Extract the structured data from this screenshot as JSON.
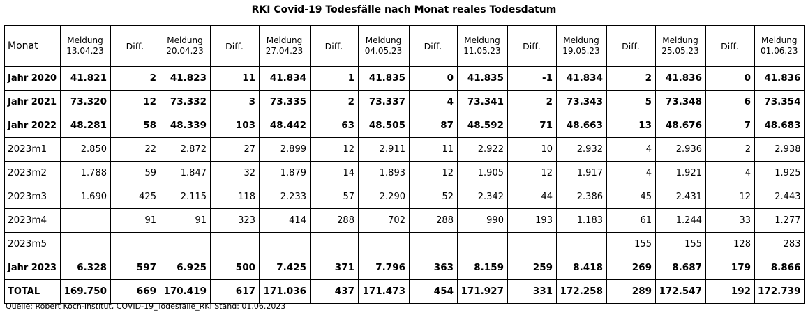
{
  "title": "RKI Covid-19 Todesfälle nach Monat reales Todesdatum",
  "header": {
    "monat": "Monat",
    "diff": "Diff.",
    "meldung_label": "Meldung",
    "dates": [
      "13.04.23",
      "20.04.23",
      "27.04.23",
      "04.05.23",
      "11.05.23",
      "19.05.23",
      "25.05.23",
      "01.06.23"
    ]
  },
  "rows": [
    {
      "label": "Jahr 2020",
      "bold": true,
      "cells": [
        "41.821",
        "2",
        "41.823",
        "11",
        "41.834",
        "1",
        "41.835",
        "0",
        "41.835",
        "-1",
        "41.834",
        "2",
        "41.836",
        "0",
        "41.836"
      ]
    },
    {
      "label": "Jahr 2021",
      "bold": true,
      "cells": [
        "73.320",
        "12",
        "73.332",
        "3",
        "73.335",
        "2",
        "73.337",
        "4",
        "73.341",
        "2",
        "73.343",
        "5",
        "73.348",
        "6",
        "73.354"
      ]
    },
    {
      "label": "Jahr 2022",
      "bold": true,
      "cells": [
        "48.281",
        "58",
        "48.339",
        "103",
        "48.442",
        "63",
        "48.505",
        "87",
        "48.592",
        "71",
        "48.663",
        "13",
        "48.676",
        "7",
        "48.683"
      ]
    },
    {
      "label": "2023m1",
      "bold": false,
      "cells": [
        "2.850",
        "22",
        "2.872",
        "27",
        "2.899",
        "12",
        "2.911",
        "11",
        "2.922",
        "10",
        "2.932",
        "4",
        "2.936",
        "2",
        "2.938"
      ]
    },
    {
      "label": "2023m2",
      "bold": false,
      "cells": [
        "1.788",
        "59",
        "1.847",
        "32",
        "1.879",
        "14",
        "1.893",
        "12",
        "1.905",
        "12",
        "1.917",
        "4",
        "1.921",
        "4",
        "1.925"
      ]
    },
    {
      "label": "2023m3",
      "bold": false,
      "cells": [
        "1.690",
        "425",
        "2.115",
        "118",
        "2.233",
        "57",
        "2.290",
        "52",
        "2.342",
        "44",
        "2.386",
        "45",
        "2.431",
        "12",
        "2.443"
      ]
    },
    {
      "label": "2023m4",
      "bold": false,
      "cells": [
        "",
        "91",
        "91",
        "323",
        "414",
        "288",
        "702",
        "288",
        "990",
        "193",
        "1.183",
        "61",
        "1.244",
        "33",
        "1.277"
      ]
    },
    {
      "label": "2023m5",
      "bold": false,
      "cells": [
        "",
        "",
        "",
        "",
        "",
        "",
        "",
        "",
        "",
        "",
        "",
        "155",
        "155",
        "128",
        "283"
      ]
    },
    {
      "label": "Jahr 2023",
      "bold": true,
      "cells": [
        "6.328",
        "597",
        "6.925",
        "500",
        "7.425",
        "371",
        "7.796",
        "363",
        "8.159",
        "259",
        "8.418",
        "269",
        "8.687",
        "179",
        "8.866"
      ]
    },
    {
      "label": "TOTAL",
      "bold": true,
      "cells": [
        "169.750",
        "669",
        "170.419",
        "617",
        "171.036",
        "437",
        "171.473",
        "454",
        "171.927",
        "331",
        "172.258",
        "289",
        "172.547",
        "192",
        "172.739"
      ]
    }
  ],
  "source": "Quelle: Robert Koch-Institut, COVID-19_Todesfälle_RKI Stand: 01.06.2023"
}
